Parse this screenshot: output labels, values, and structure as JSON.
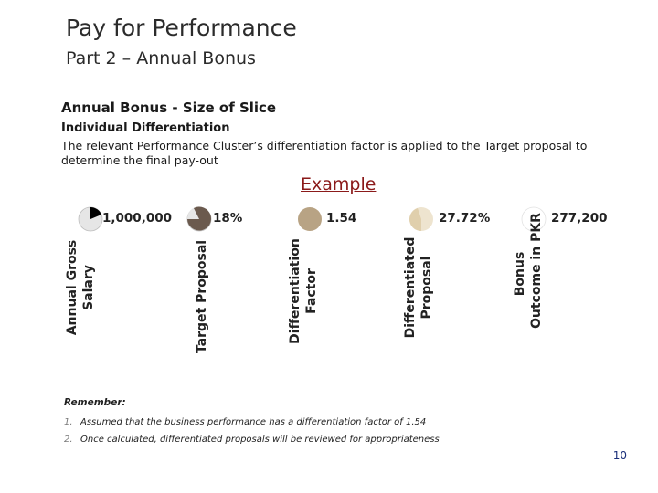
{
  "header": {
    "title": "Pay for Performance",
    "subtitle": "Part 2 – Annual Bonus"
  },
  "section": {
    "heading": "Annual Bonus - Size of Slice",
    "subheading": "Individual Differentiation",
    "description": "The relevant Performance Cluster’s differentiation factor is applied to the Target proposal to determine the final pay-out"
  },
  "example": {
    "label": "Example",
    "steps": [
      {
        "label_line1": "Annual Gross",
        "label_line2": "Salary",
        "value": "1,000,000",
        "pie_icon": "pie-slice-icon",
        "slice_color": "#000000",
        "base_color": "#e6e6e6"
      },
      {
        "label_line1": "Target Proposal",
        "label_line2": "",
        "value": "18%",
        "pie_icon": "pie-slice-icon",
        "slice_color": "#e6e6e6",
        "base_color": "#6b5a4e"
      },
      {
        "label_line1": "Differentiation",
        "label_line2": "Factor",
        "value": "1.54",
        "pie_icon": "pie-slice-icon",
        "slice_color": "#d8c6a6",
        "base_color": "#b8a384"
      },
      {
        "label_line1": "Differentiated",
        "label_line2": "Proposal",
        "value": "27.72%",
        "pie_icon": "pie-slice-icon",
        "slice_color": "#e3d4b4",
        "base_color": "#eee4cf"
      },
      {
        "label_line1": "Bonus",
        "label_line2": "Outcome in PKR",
        "value": "277,200",
        "pie_icon": "pie-slice-icon",
        "slice_color": "#ffffff",
        "base_color": "#ffffff"
      }
    ]
  },
  "remember": {
    "heading": "Remember:",
    "items": [
      {
        "num": "1.",
        "text": "Assumed that the business performance has a differentiation factor of 1.54"
      },
      {
        "num": "2.",
        "text": "Once calculated, differentiated proposals will be reviewed for appropriateness"
      }
    ]
  },
  "page_number": "10"
}
